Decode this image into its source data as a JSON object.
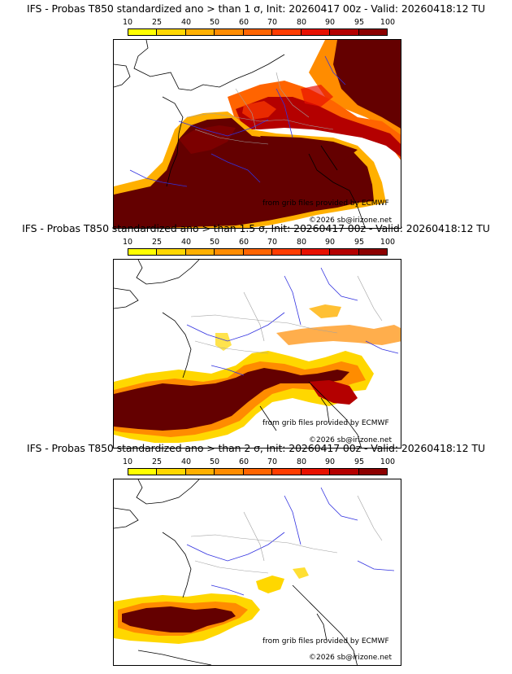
{
  "colors": {
    "scale": [
      "#ffff00",
      "#ffd700",
      "#ffb000",
      "#ff8c00",
      "#ff6400",
      "#ff3c00",
      "#e81000",
      "#b40000",
      "#8c0000",
      "#640000"
    ],
    "land_outline": "#000000",
    "rivers": "#3232e0",
    "borders": "#a0a0a0"
  },
  "colorbar": {
    "ticks": [
      "10",
      "25",
      "40",
      "50",
      "60",
      "70",
      "80",
      "90",
      "95",
      "100"
    ]
  },
  "panels": [
    {
      "title": "IFS - Probas T850  standardized ano > than 1 σ, Init: 20260417 00z - Valid: 20260418:12 TU",
      "grib_credit": "from grib files provided by ECMWF",
      "copyright": "©2026 sb@irizone.net",
      "threshold": "1 σ"
    },
    {
      "title": "IFS - Probas T850  standardized ano > than 1.5 σ, Init: 20260417 00z - Valid: 20260418:12 TU",
      "grib_credit": "from grib files provided by ECMWF",
      "copyright": "©2026 sb@irizone.net",
      "threshold": "1.5 σ"
    },
    {
      "title": "IFS - Probas T850  standardized ano > than 2 σ, Init: 20260417 00z - Valid: 20260418:12 TU",
      "grib_credit": "from grib files provided by ECMWF",
      "copyright": "©2026 sb@irizone.net",
      "threshold": "2 σ"
    }
  ]
}
